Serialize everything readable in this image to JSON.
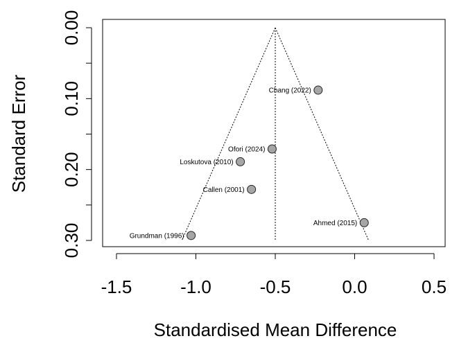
{
  "chart_data": {
    "type": "scatter",
    "subtype": "funnel-plot",
    "xlabel": "Standardised Mean Difference",
    "ylabel": "Standard Error",
    "xlim": [
      -1.62,
      0.55
    ],
    "ylim": [
      0.0,
      0.3
    ],
    "y_inverted": true,
    "x_ticks": [
      -1.5,
      -1.0,
      -0.5,
      0.0,
      0.5
    ],
    "x_tick_labels": [
      "-1.5",
      "-1.0",
      "-0.5",
      "0.0",
      "0.5"
    ],
    "y_ticks": [
      0.0,
      0.05,
      0.1,
      0.15,
      0.2,
      0.25,
      0.3
    ],
    "y_tick_labels": [
      "0.00",
      "",
      "0.10",
      "",
      "0.20",
      "",
      "0.30"
    ],
    "pooled_estimate": -0.5,
    "funnel_se_max": 0.3,
    "grid": false,
    "legend": "none",
    "marker_color": "#a6a6a6",
    "points": [
      {
        "label": "Chang (2022)",
        "x": -0.23,
        "y": 0.088
      },
      {
        "label": "Ofori (2024)",
        "x": -0.52,
        "y": 0.171
      },
      {
        "label": "Loskutova (2010)",
        "x": -0.72,
        "y": 0.189
      },
      {
        "label": "Callen (2001)",
        "x": -0.65,
        "y": 0.228
      },
      {
        "label": "Ahmed (2015)",
        "x": 0.06,
        "y": 0.275
      },
      {
        "label": "Grundman (1996)",
        "x": -1.03,
        "y": 0.293
      }
    ]
  }
}
